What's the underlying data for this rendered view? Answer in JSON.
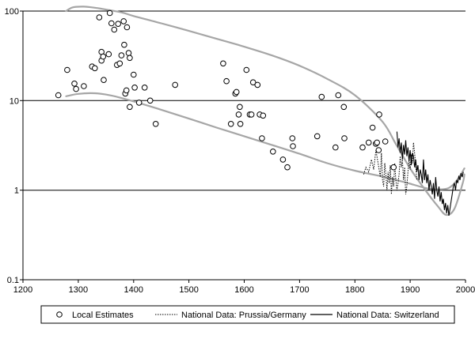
{
  "chart_data": {
    "type": "scatter",
    "title": "",
    "xlabel": "",
    "ylabel": "",
    "x_scale": "linear",
    "y_scale": "log",
    "xlim": [
      1200,
      2000
    ],
    "ylim": [
      0.1,
      100
    ],
    "x_ticks": [
      "1200",
      "1300",
      "1400",
      "1500",
      "1600",
      "1700",
      "1800",
      "1900",
      "2000"
    ],
    "y_ticks": [
      "0.1",
      "1",
      "10",
      "100"
    ],
    "x_tick_values": [
      1200,
      1300,
      1400,
      1500,
      1600,
      1700,
      1800,
      1900,
      2000
    ],
    "y_tick_values": [
      0.1,
      1,
      10,
      100
    ],
    "gridlines_y": [
      1,
      10,
      100
    ],
    "legend_position": "bottom",
    "colors": {
      "axis": "#000000",
      "band": "#a6a6a6",
      "points": "#000000"
    },
    "legend": [
      {
        "label": "Local Estimates",
        "style": "circle"
      },
      {
        "label": "National Data: Prussia/Germany",
        "style": "dotted"
      },
      {
        "label": "National Data: Switzerland",
        "style": "solid"
      }
    ],
    "series": [
      {
        "name": "Local Estimates",
        "style": "circle",
        "points": [
          [
            1264,
            11.5
          ],
          [
            1280,
            22
          ],
          [
            1293,
            15.5
          ],
          [
            1296,
            13.5
          ],
          [
            1310,
            14.5
          ],
          [
            1325,
            24
          ],
          [
            1330,
            23
          ],
          [
            1338,
            85
          ],
          [
            1342,
            28
          ],
          [
            1342,
            35
          ],
          [
            1345,
            31
          ],
          [
            1346,
            17
          ],
          [
            1355,
            33
          ],
          [
            1357,
            95
          ],
          [
            1360,
            73
          ],
          [
            1365,
            62
          ],
          [
            1370,
            25
          ],
          [
            1372,
            72
          ],
          [
            1375,
            26
          ],
          [
            1378,
            32
          ],
          [
            1382,
            77
          ],
          [
            1383,
            42
          ],
          [
            1385,
            12
          ],
          [
            1387,
            13
          ],
          [
            1388,
            66
          ],
          [
            1391,
            34
          ],
          [
            1393,
            30
          ],
          [
            1393,
            8.5
          ],
          [
            1400,
            19.5
          ],
          [
            1402,
            14
          ],
          [
            1410,
            9.5
          ],
          [
            1420,
            14
          ],
          [
            1430,
            10
          ],
          [
            1440,
            5.5
          ],
          [
            1475,
            15
          ],
          [
            1562,
            26
          ],
          [
            1568,
            16.5
          ],
          [
            1576,
            5.5
          ],
          [
            1584,
            12
          ],
          [
            1586,
            12.5
          ],
          [
            1590,
            7
          ],
          [
            1592,
            8.5
          ],
          [
            1593,
            5.5
          ],
          [
            1604,
            22
          ],
          [
            1610,
            7
          ],
          [
            1613,
            7
          ],
          [
            1616,
            16
          ],
          [
            1624,
            15
          ],
          [
            1628,
            7
          ],
          [
            1632,
            3.8
          ],
          [
            1634,
            6.8
          ],
          [
            1652,
            2.7
          ],
          [
            1670,
            2.2
          ],
          [
            1678,
            1.8
          ],
          [
            1687,
            3.8
          ],
          [
            1688,
            3.1
          ],
          [
            1732,
            4
          ],
          [
            1740,
            11
          ],
          [
            1765,
            3
          ],
          [
            1770,
            11.5
          ],
          [
            1780,
            8.5
          ],
          [
            1781,
            3.8
          ],
          [
            1814,
            3
          ],
          [
            1825,
            3.4
          ],
          [
            1832,
            5
          ],
          [
            1838,
            3.3
          ],
          [
            1840,
            3.4
          ],
          [
            1843,
            2.8
          ],
          [
            1844,
            7
          ],
          [
            1855,
            3.5
          ],
          [
            1870,
            1.8
          ]
        ]
      },
      {
        "name": "National Data: Prussia/Germany",
        "style": "dotted",
        "points": [
          [
            1816,
            1.5
          ],
          [
            1820,
            1.8
          ],
          [
            1825,
            1.6
          ],
          [
            1830,
            2.2
          ],
          [
            1834,
            1.7
          ],
          [
            1838,
            2.8
          ],
          [
            1842,
            2.0
          ],
          [
            1846,
            1.4
          ],
          [
            1848,
            2.6
          ],
          [
            1850,
            1.3
          ],
          [
            1852,
            1.1
          ],
          [
            1854,
            2.0
          ],
          [
            1856,
            1.5
          ],
          [
            1858,
            1.0
          ],
          [
            1860,
            1.6
          ],
          [
            1862,
            1.2
          ],
          [
            1864,
            1.9
          ],
          [
            1866,
            0.9
          ],
          [
            1868,
            1.4
          ],
          [
            1870,
            1.1
          ],
          [
            1872,
            2.0
          ],
          [
            1874,
            1.3
          ],
          [
            1876,
            1.0
          ],
          [
            1878,
            1.2
          ],
          [
            1880,
            1.5
          ],
          [
            1882,
            2.4
          ],
          [
            1884,
            1.8
          ],
          [
            1886,
            2.2
          ],
          [
            1888,
            1.3
          ],
          [
            1890,
            1.8
          ],
          [
            1892,
            0.9
          ],
          [
            1894,
            1.1
          ],
          [
            1896,
            1.6
          ],
          [
            1898,
            2.2
          ],
          [
            1900,
            1.7
          ],
          [
            1902,
            2.5
          ],
          [
            1904,
            2.0
          ],
          [
            1906,
            3.4
          ],
          [
            1908,
            2.6
          ],
          [
            1910,
            1.9
          ],
          [
            1912,
            1.3
          ]
        ]
      },
      {
        "name": "National Data: Switzerland",
        "style": "solid",
        "points": [
          [
            1876,
            4.5
          ],
          [
            1878,
            3.0
          ],
          [
            1880,
            3.8
          ],
          [
            1882,
            2.6
          ],
          [
            1884,
            3.4
          ],
          [
            1886,
            2.2
          ],
          [
            1888,
            3.2
          ],
          [
            1890,
            2.5
          ],
          [
            1892,
            3.6
          ],
          [
            1894,
            2.4
          ],
          [
            1896,
            3.0
          ],
          [
            1898,
            2.1
          ],
          [
            1900,
            2.8
          ],
          [
            1902,
            1.9
          ],
          [
            1904,
            2.6
          ],
          [
            1906,
            2.4
          ],
          [
            1908,
            1.8
          ],
          [
            1910,
            2.2
          ],
          [
            1912,
            1.6
          ],
          [
            1914,
            1.9
          ],
          [
            1916,
            1.3
          ],
          [
            1918,
            1.7
          ],
          [
            1920,
            1.5
          ],
          [
            1922,
            1.2
          ],
          [
            1924,
            2.2
          ],
          [
            1926,
            1.3
          ],
          [
            1928,
            1.7
          ],
          [
            1930,
            1.2
          ],
          [
            1932,
            1.5
          ],
          [
            1934,
            1.0
          ],
          [
            1936,
            1.3
          ],
          [
            1938,
            1.1
          ],
          [
            1940,
            0.9
          ],
          [
            1942,
            1.2
          ],
          [
            1944,
            0.8
          ],
          [
            1946,
            1.4
          ],
          [
            1948,
            1.0
          ],
          [
            1950,
            0.85
          ],
          [
            1952,
            1.1
          ],
          [
            1954,
            0.75
          ],
          [
            1956,
            0.95
          ],
          [
            1958,
            0.7
          ],
          [
            1960,
            0.8
          ],
          [
            1962,
            0.6
          ],
          [
            1964,
            0.72
          ],
          [
            1966,
            0.55
          ],
          [
            1968,
            0.68
          ],
          [
            1970,
            0.52
          ],
          [
            1972,
            0.62
          ],
          [
            1974,
            0.75
          ],
          [
            1976,
            0.9
          ],
          [
            1978,
            1.1
          ],
          [
            1980,
            1.2
          ],
          [
            1982,
            1.0
          ],
          [
            1984,
            1.3
          ],
          [
            1986,
            1.2
          ],
          [
            1988,
            1.45
          ],
          [
            1990,
            1.3
          ],
          [
            1992,
            1.55
          ],
          [
            1994,
            1.4
          ],
          [
            1996,
            1.6
          ]
        ]
      },
      {
        "name": "",
        "style": "band-upper",
        "points": [
          [
            1278,
            100
          ],
          [
            1290,
            110
          ],
          [
            1310,
            112
          ],
          [
            1330,
            109
          ],
          [
            1350,
            104
          ],
          [
            1380,
            96
          ],
          [
            1400,
            88
          ],
          [
            1450,
            73
          ],
          [
            1500,
            60
          ],
          [
            1550,
            49
          ],
          [
            1600,
            40
          ],
          [
            1650,
            32
          ],
          [
            1700,
            24.5
          ],
          [
            1750,
            17.5
          ],
          [
            1800,
            11.5
          ],
          [
            1850,
            5.8
          ],
          [
            1875,
            3.2
          ],
          [
            1900,
            1.75
          ],
          [
            1925,
            1.05
          ],
          [
            1950,
            0.66
          ],
          [
            1965,
            0.53
          ],
          [
            1980,
            0.62
          ],
          [
            1995,
            1.2
          ],
          [
            1998,
            1.5
          ]
        ]
      },
      {
        "name": "",
        "style": "band-lower",
        "points": [
          [
            1278,
            11.2
          ],
          [
            1300,
            11.9
          ],
          [
            1330,
            12.1
          ],
          [
            1360,
            11.4
          ],
          [
            1400,
            9.8
          ],
          [
            1450,
            7.9
          ],
          [
            1500,
            6.3
          ],
          [
            1550,
            5.0
          ],
          [
            1600,
            4.0
          ],
          [
            1650,
            3.2
          ],
          [
            1700,
            2.55
          ],
          [
            1750,
            2.0
          ],
          [
            1800,
            1.65
          ],
          [
            1850,
            1.42
          ],
          [
            1875,
            1.3
          ],
          [
            1900,
            1.18
          ],
          [
            1930,
            1.05
          ],
          [
            1950,
            1.02
          ],
          [
            1970,
            1.06
          ],
          [
            1985,
            1.3
          ],
          [
            1998,
            1.75
          ]
        ]
      }
    ]
  }
}
